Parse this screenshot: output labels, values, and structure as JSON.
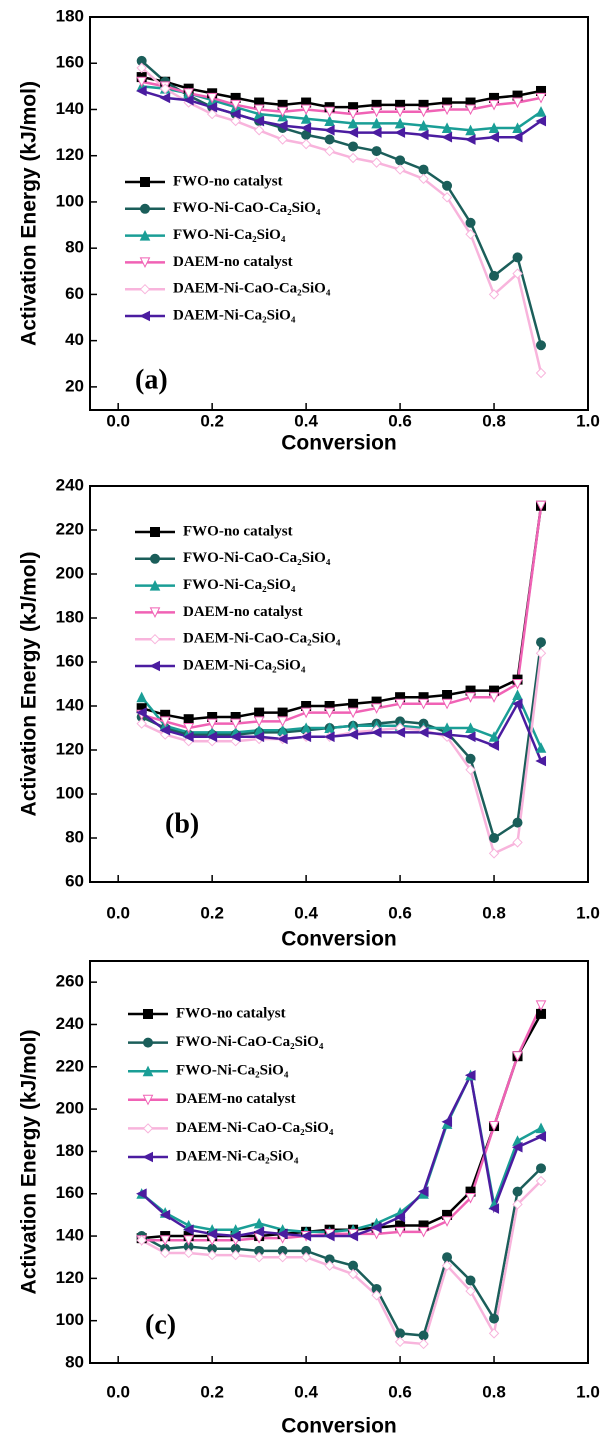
{
  "chart_data": [
    {
      "type": "line",
      "panel_label": "(a)",
      "x_label": "Conversion",
      "y_label": "Activation Energy (kJ/mol)",
      "x": [
        0.05,
        0.1,
        0.15,
        0.2,
        0.25,
        0.3,
        0.35,
        0.4,
        0.45,
        0.5,
        0.55,
        0.6,
        0.65,
        0.7,
        0.75,
        0.8,
        0.85,
        0.9
      ],
      "xlim": [
        -0.06,
        1.0
      ],
      "xticks": [
        {
          "value": 0,
          "label": "0.0"
        },
        0.2,
        0.4,
        0.6,
        0.8,
        {
          "value": 1,
          "label": "1.0"
        }
      ],
      "ylim": [
        10,
        180
      ],
      "yticks": [
        20,
        40,
        60,
        80,
        100,
        120,
        140,
        160,
        180
      ],
      "series": [
        {
          "name": "FWO-no catalyst",
          "color": "#000000",
          "marker": "square",
          "values": [
            154,
            152,
            149,
            147,
            145,
            143,
            142,
            143,
            141,
            141,
            142,
            142,
            142,
            143,
            143,
            145,
            146,
            148
          ]
        },
        {
          "name": "FWO-Ni-CaO-Ca₂SiO₄",
          "color": "#1b5e5a",
          "marker": "circle",
          "values": [
            161,
            152,
            146,
            141,
            138,
            135,
            132,
            129,
            127,
            124,
            122,
            118,
            114,
            107,
            91,
            68,
            76,
            38
          ]
        },
        {
          "name": "FWO-Ni-Ca₂SiO₄",
          "color": "#1a9e96",
          "marker": "triangle-up",
          "values": [
            150,
            149,
            147,
            144,
            141,
            138,
            137,
            136,
            135,
            134,
            134,
            134,
            133,
            132,
            131,
            132,
            132,
            139
          ]
        },
        {
          "name": "DAEM-no catalyst",
          "color": "#f062b5",
          "marker": "triangle-down",
          "values": [
            152,
            150,
            147,
            145,
            142,
            140,
            139,
            140,
            139,
            138,
            139,
            139,
            139,
            140,
            140,
            142,
            143,
            145
          ]
        },
        {
          "name": "DAEM-Ni-CaO-Ca₂SiO₄",
          "color": "#f8b4dc",
          "marker": "diamond",
          "values": [
            158,
            149,
            143,
            138,
            135,
            131,
            127,
            125,
            122,
            119,
            117,
            114,
            110,
            102,
            86,
            60,
            69,
            26
          ]
        },
        {
          "name": "DAEM-Ni-Ca₂SiO₄",
          "color": "#4b1ca0",
          "marker": "triangle-left",
          "values": [
            148,
            145,
            144,
            141,
            138,
            135,
            133,
            132,
            131,
            130,
            130,
            130,
            129,
            128,
            127,
            128,
            128,
            135
          ]
        }
      ]
    },
    {
      "type": "line",
      "panel_label": "(b)",
      "x_label": "Conversion",
      "y_label": "Activation Energy (kJ/mol)",
      "x": [
        0.05,
        0.1,
        0.15,
        0.2,
        0.25,
        0.3,
        0.35,
        0.4,
        0.45,
        0.5,
        0.55,
        0.6,
        0.65,
        0.7,
        0.75,
        0.8,
        0.85,
        0.9
      ],
      "xlim": [
        -0.06,
        1.0
      ],
      "xticks": [
        {
          "value": 0,
          "label": "0.0"
        },
        0.2,
        0.4,
        0.6,
        0.8,
        {
          "value": 1,
          "label": "1.0"
        }
      ],
      "ylim": [
        60,
        240
      ],
      "yticks": [
        60,
        80,
        100,
        120,
        140,
        160,
        180,
        200,
        220,
        240
      ],
      "series": [
        {
          "name": "FWO-no catalyst",
          "color": "#000000",
          "marker": "square",
          "values": [
            139,
            136,
            134,
            135,
            135,
            137,
            137,
            140,
            140,
            141,
            142,
            144,
            144,
            145,
            147,
            147,
            152,
            231
          ]
        },
        {
          "name": "FWO-Ni-CaO-Ca₂SiO₄",
          "color": "#1b5e5a",
          "marker": "circle",
          "values": [
            135,
            130,
            127,
            127,
            127,
            128,
            128,
            129,
            130,
            131,
            132,
            133,
            132,
            128,
            116,
            80,
            87,
            169
          ]
        },
        {
          "name": "FWO-Ni-Ca₂SiO₄",
          "color": "#1a9e96",
          "marker": "triangle-up",
          "values": [
            144,
            131,
            128,
            128,
            128,
            129,
            129,
            130,
            130,
            131,
            131,
            131,
            130,
            130,
            130,
            126,
            145,
            121
          ]
        },
        {
          "name": "DAEM-no catalyst",
          "color": "#f062b5",
          "marker": "triangle-down",
          "values": [
            136,
            133,
            130,
            132,
            132,
            133,
            133,
            137,
            137,
            137,
            139,
            141,
            141,
            141,
            144,
            144,
            150,
            231
          ]
        },
        {
          "name": "DAEM-Ni-CaO-Ca₂SiO₄",
          "color": "#f8b4dc",
          "marker": "diamond",
          "values": [
            132,
            127,
            124,
            124,
            124,
            125,
            125,
            126,
            126,
            128,
            129,
            130,
            129,
            126,
            111,
            73,
            78,
            164
          ]
        },
        {
          "name": "DAEM-Ni-Ca₂SiO₄",
          "color": "#4b1ca0",
          "marker": "triangle-left",
          "values": [
            137,
            129,
            126,
            126,
            126,
            126,
            125,
            126,
            126,
            127,
            128,
            128,
            128,
            127,
            126,
            122,
            141,
            115
          ]
        }
      ]
    },
    {
      "type": "line",
      "panel_label": "(c)",
      "x_label": "Conversion",
      "y_label": "Activation Energy (kJ/mol)",
      "x": [
        0.05,
        0.1,
        0.15,
        0.2,
        0.25,
        0.3,
        0.35,
        0.4,
        0.45,
        0.5,
        0.55,
        0.6,
        0.65,
        0.7,
        0.75,
        0.8,
        0.85,
        0.9
      ],
      "xlim": [
        -0.06,
        1.0
      ],
      "xticks": [
        {
          "value": 0,
          "label": "0.0"
        },
        0.2,
        0.4,
        0.6,
        0.8,
        {
          "value": 1,
          "label": "1.0"
        }
      ],
      "ylim": [
        80,
        270
      ],
      "yticks": [
        80,
        100,
        120,
        140,
        160,
        180,
        200,
        220,
        240,
        260
      ],
      "series": [
        {
          "name": "FWO-no catalyst",
          "color": "#000000",
          "marker": "square",
          "values": [
            139,
            140,
            140,
            140,
            140,
            140,
            141,
            142,
            143,
            143,
            144,
            145,
            145,
            150,
            161,
            192,
            225,
            245
          ]
        },
        {
          "name": "FWO-Ni-CaO-Ca₂SiO₄",
          "color": "#1b5e5a",
          "marker": "circle",
          "values": [
            140,
            134,
            135,
            134,
            134,
            133,
            133,
            133,
            129,
            126,
            115,
            94,
            93,
            130,
            119,
            101,
            161,
            172
          ]
        },
        {
          "name": "FWO-Ni-Ca₂SiO₄",
          "color": "#1a9e96",
          "marker": "triangle-up",
          "values": [
            160,
            151,
            145,
            143,
            143,
            146,
            143,
            142,
            142,
            143,
            146,
            151,
            160,
            193,
            216,
            155,
            185,
            191
          ]
        },
        {
          "name": "DAEM-no catalyst",
          "color": "#f062b5",
          "marker": "triangle-down",
          "values": [
            138,
            138,
            138,
            138,
            138,
            139,
            139,
            140,
            141,
            141,
            141,
            142,
            142,
            147,
            158,
            192,
            225,
            249
          ]
        },
        {
          "name": "DAEM-Ni-CaO-Ca₂SiO₄",
          "color": "#f8b4dc",
          "marker": "diamond",
          "values": [
            138,
            132,
            132,
            131,
            131,
            130,
            130,
            130,
            126,
            122,
            112,
            90,
            89,
            126,
            114,
            94,
            155,
            166
          ]
        },
        {
          "name": "DAEM-Ni-Ca₂SiO₄",
          "color": "#4b1ca0",
          "marker": "triangle-left",
          "values": [
            160,
            150,
            143,
            141,
            140,
            142,
            141,
            140,
            140,
            140,
            144,
            149,
            161,
            194,
            216,
            153,
            182,
            187
          ]
        }
      ]
    }
  ]
}
